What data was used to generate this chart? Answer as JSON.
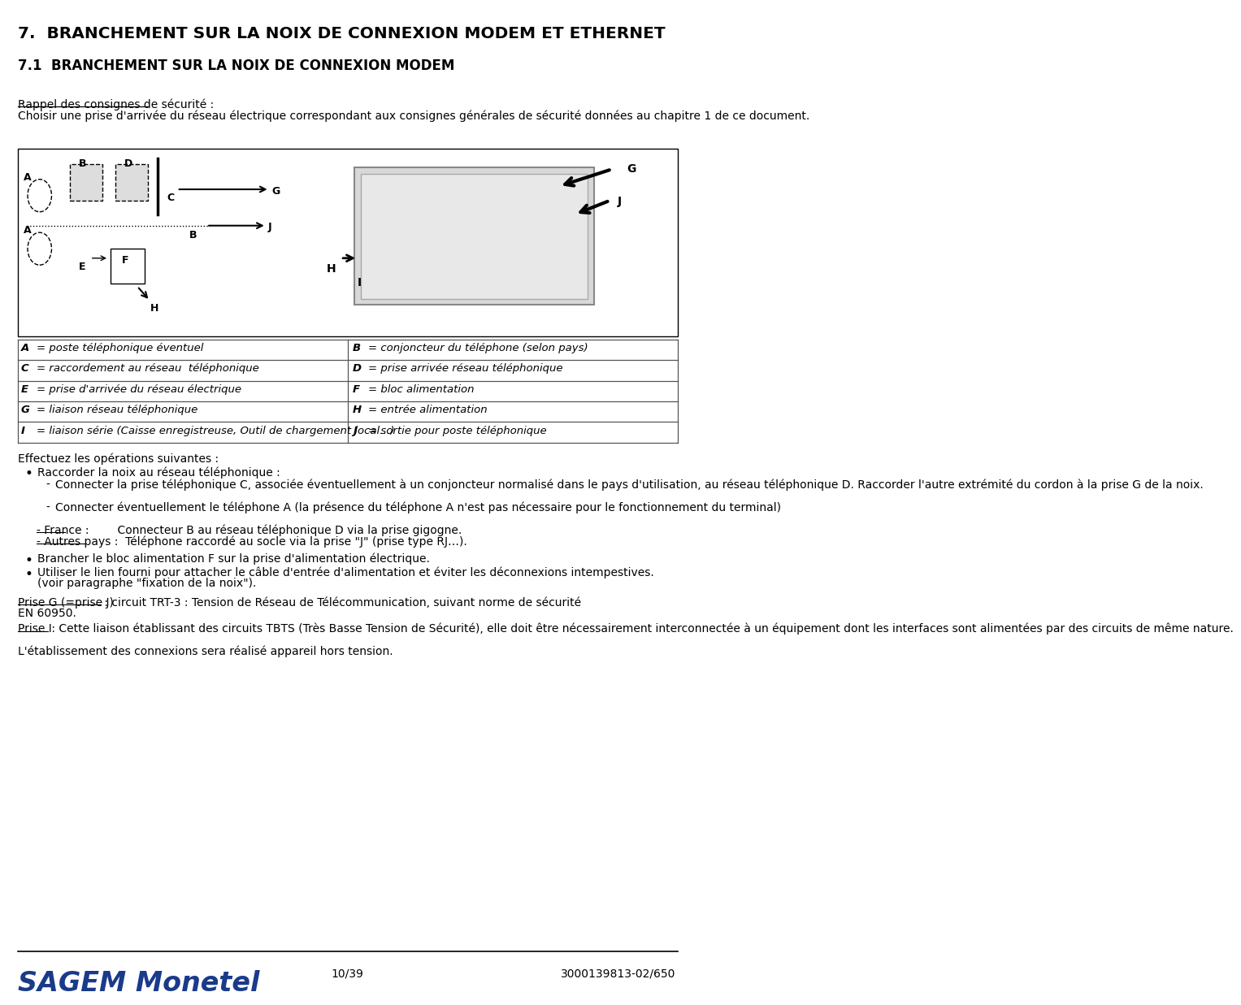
{
  "title": "7.  BRANCHEMENT SUR LA NOIX DE CONNEXION MODEM ET ETHERNET",
  "subtitle": "7.1  BRANCHEMENT SUR LA NOIX DE CONNEXION MODEM",
  "recall_title": "Rappel des consignes de sécurité :",
  "recall_text": "Choisir une prise d'arrivée du réseau électrique correspondant aux consignes générales de sécurité données au chapitre 1 de ce document.",
  "table_items": [
    [
      "A",
      "= poste téléphonique éventuel",
      "B",
      "= conjoncteur du téléphone (selon pays)"
    ],
    [
      "C",
      "= raccordement au réseau  téléphonique",
      "D",
      "= prise arrivée réseau téléphonique"
    ],
    [
      "E",
      "= prise d'arrivée du réseau électrique",
      "F",
      "= bloc alimentation"
    ],
    [
      "G",
      "= liaison réseau téléphonique",
      "H",
      "= entrée alimentation"
    ],
    [
      "I",
      "= liaison série (Caisse enregistreuse, Outil de chargement local…)",
      "J",
      "= sortie pour poste téléphonique"
    ]
  ],
  "effectuez": "Effectuez les opérations suivantes :",
  "bullet1_title": "Raccorder la noix au réseau téléphonique :",
  "bullet1_sub1": "Connecter la prise téléphonique C, associée éventuellement à un conjoncteur normalisé dans le pays d'utilisation, au réseau téléphonique D. Raccorder l'autre extrémité du cordon à la prise G de la noix.",
  "bullet1_sub2": "Connecter éventuellement le téléphone A (la présence du téléphone A n'est pas nécessaire pour le fonctionnement du terminal)",
  "bullet1_france": "- France :        Connecteur B au réseau téléphonique D via la prise gigogne.",
  "bullet1_autres": "- Autres pays :  Téléphone raccordé au socle via la prise \"J\" (prise type RJ…).",
  "bullet2": "Brancher le bloc alimentation F sur la prise d'alimentation électrique.",
  "bullet3_line1": "Utiliser le lien fourni pour attacher le câble d'entrée d'alimentation et éviter les déconnexions intempestives.",
  "bullet3_line2": "(voir paragraphe \"fixation de la noix\").",
  "note1_title": "Prise G (=prise J)",
  "note1_text": " : circuit TRT-3 : Tension de Réseau de Télécommunication, suivant norme de sécurité",
  "note1_text2": "EN 60950.",
  "note2_title": "Prise I",
  "note2_text": " : Cette liaison établissant des circuits TBTS (Très Basse Tension de Sécurité), elle doit être nécessairement interconnectée à un équipement dont les interfaces sont alimentées par des circuits de même nature.",
  "note2_text2": "L'établissement des connexions sera réalisé appareil hors tension.",
  "footer_logo": "SAGEM Monetel",
  "footer_page": "10/39",
  "footer_ref": "3000139813-02/650",
  "bg_color": "#ffffff",
  "text_color": "#000000",
  "title_color": "#000000",
  "sagem_color": "#1a3a8a",
  "border_color": "#000000",
  "table_border_color": "#555555"
}
